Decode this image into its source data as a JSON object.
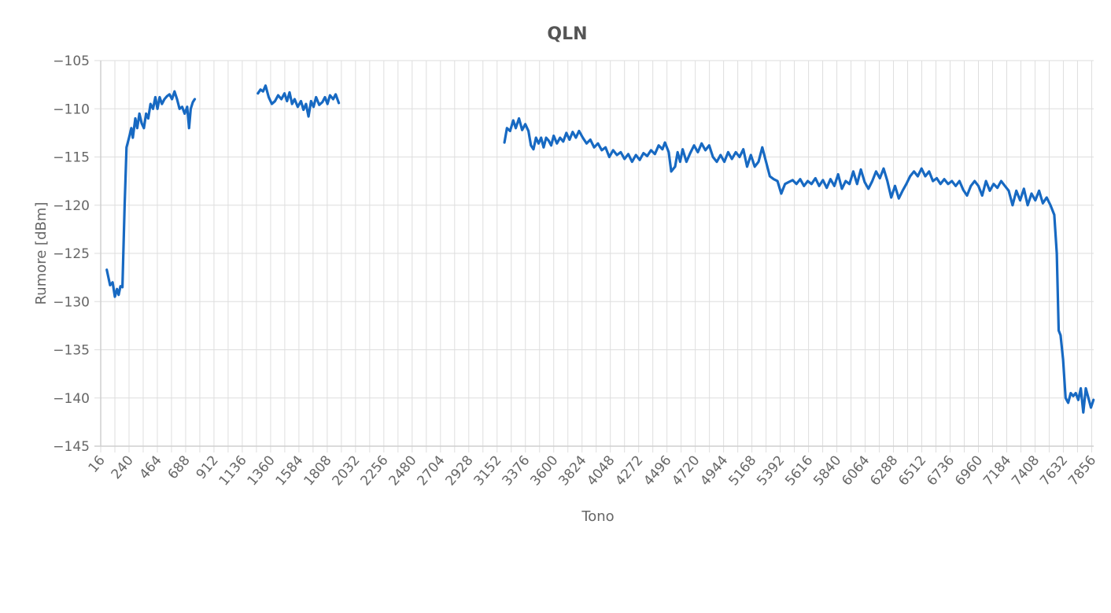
{
  "chart_data": {
    "type": "line",
    "title": "QLN",
    "xlabel": "Tono",
    "ylabel": "Rumore [dBm]",
    "xlim": [
      16,
      7872
    ],
    "ylim": [
      -145,
      -105
    ],
    "x_ticks": [
      16,
      240,
      464,
      688,
      912,
      1136,
      1360,
      1584,
      1808,
      2032,
      2256,
      2480,
      2704,
      2928,
      3152,
      3376,
      3600,
      3824,
      4048,
      4272,
      4496,
      4720,
      4944,
      5168,
      5392,
      5616,
      5840,
      6064,
      6288,
      6512,
      6736,
      6960,
      7184,
      7408,
      7632,
      7856
    ],
    "y_ticks": [
      -105,
      -110,
      -115,
      -120,
      -125,
      -130,
      -135,
      -140,
      -145
    ],
    "grid": true,
    "series_color": "#1769c2",
    "series": [
      {
        "segments": [
          [
            [
              64,
              -126.7
            ],
            [
              90,
              -128.3
            ],
            [
              110,
              -128.0
            ],
            [
              128,
              -129.5
            ],
            [
              145,
              -128.7
            ],
            [
              158,
              -129.3
            ],
            [
              172,
              -128.4
            ],
            [
              188,
              -128.5
            ],
            [
              205,
              -120.0
            ],
            [
              220,
              -114.0
            ],
            [
              240,
              -113.0
            ],
            [
              258,
              -112.0
            ],
            [
              270,
              -113.0
            ],
            [
              290,
              -111.0
            ],
            [
              305,
              -112.0
            ],
            [
              322,
              -110.5
            ],
            [
              340,
              -111.5
            ],
            [
              358,
              -112.0
            ],
            [
              375,
              -110.5
            ],
            [
              392,
              -111.0
            ],
            [
              410,
              -109.5
            ],
            [
              430,
              -110.0
            ],
            [
              448,
              -108.8
            ],
            [
              465,
              -110.0
            ],
            [
              482,
              -108.8
            ],
            [
              500,
              -109.5
            ],
            [
              520,
              -109.0
            ],
            [
              540,
              -108.7
            ],
            [
              560,
              -108.5
            ],
            [
              580,
              -109.0
            ],
            [
              600,
              -108.2
            ],
            [
              620,
              -109.0
            ],
            [
              640,
              -110.0
            ],
            [
              660,
              -109.8
            ],
            [
              680,
              -110.5
            ],
            [
              700,
              -109.8
            ],
            [
              715,
              -112.0
            ],
            [
              728,
              -110.0
            ],
            [
              745,
              -109.3
            ],
            [
              760,
              -109.0
            ]
          ],
          [
            [
              1260,
              -108.4
            ],
            [
              1280,
              -108.0
            ],
            [
              1300,
              -108.2
            ],
            [
              1320,
              -107.6
            ],
            [
              1345,
              -108.8
            ],
            [
              1370,
              -109.5
            ],
            [
              1395,
              -109.2
            ],
            [
              1420,
              -108.6
            ],
            [
              1445,
              -109.0
            ],
            [
              1470,
              -108.4
            ],
            [
              1490,
              -109.2
            ],
            [
              1510,
              -108.3
            ],
            [
              1530,
              -109.5
            ],
            [
              1550,
              -109.0
            ],
            [
              1575,
              -109.8
            ],
            [
              1600,
              -109.2
            ],
            [
              1620,
              -110.1
            ],
            [
              1640,
              -109.5
            ],
            [
              1660,
              -110.8
            ],
            [
              1680,
              -109.2
            ],
            [
              1700,
              -109.8
            ],
            [
              1720,
              -108.8
            ],
            [
              1745,
              -109.6
            ],
            [
              1770,
              -109.3
            ],
            [
              1790,
              -108.8
            ],
            [
              1810,
              -109.5
            ],
            [
              1830,
              -108.6
            ],
            [
              1855,
              -109.0
            ],
            [
              1875,
              -108.5
            ],
            [
              1900,
              -109.4
            ]
          ],
          [
            [
              3210,
              -113.5
            ],
            [
              3230,
              -112.0
            ],
            [
              3255,
              -112.3
            ],
            [
              3280,
              -111.2
            ],
            [
              3300,
              -112.0
            ],
            [
              3325,
              -111.0
            ],
            [
              3350,
              -112.2
            ],
            [
              3375,
              -111.6
            ],
            [
              3400,
              -112.3
            ],
            [
              3420,
              -113.8
            ],
            [
              3440,
              -114.2
            ],
            [
              3460,
              -113.0
            ],
            [
              3480,
              -113.6
            ],
            [
              3500,
              -113.0
            ],
            [
              3520,
              -114.0
            ],
            [
              3540,
              -113.0
            ],
            [
              3560,
              -113.3
            ],
            [
              3580,
              -113.8
            ],
            [
              3600,
              -112.8
            ],
            [
              3625,
              -113.6
            ],
            [
              3650,
              -113.0
            ],
            [
              3675,
              -113.4
            ],
            [
              3700,
              -112.5
            ],
            [
              3725,
              -113.2
            ],
            [
              3750,
              -112.4
            ],
            [
              3775,
              -113.0
            ],
            [
              3800,
              -112.3
            ],
            [
              3830,
              -113.0
            ],
            [
              3860,
              -113.6
            ],
            [
              3890,
              -113.2
            ],
            [
              3920,
              -114.0
            ],
            [
              3950,
              -113.6
            ],
            [
              3980,
              -114.3
            ],
            [
              4010,
              -114.0
            ],
            [
              4040,
              -115.0
            ],
            [
              4070,
              -114.3
            ],
            [
              4100,
              -114.8
            ],
            [
              4130,
              -114.5
            ],
            [
              4160,
              -115.2
            ],
            [
              4190,
              -114.7
            ],
            [
              4220,
              -115.5
            ],
            [
              4250,
              -114.8
            ],
            [
              4280,
              -115.3
            ],
            [
              4310,
              -114.6
            ],
            [
              4340,
              -114.9
            ],
            [
              4370,
              -114.3
            ],
            [
              4400,
              -114.7
            ],
            [
              4430,
              -113.8
            ],
            [
              4460,
              -114.2
            ],
            [
              4480,
              -113.5
            ],
            [
              4510,
              -114.5
            ],
            [
              4530,
              -116.5
            ],
            [
              4560,
              -116.0
            ],
            [
              4580,
              -114.5
            ],
            [
              4600,
              -115.5
            ],
            [
              4620,
              -114.2
            ],
            [
              4650,
              -115.5
            ],
            [
              4680,
              -114.6
            ],
            [
              4710,
              -113.8
            ],
            [
              4740,
              -114.5
            ],
            [
              4770,
              -113.6
            ],
            [
              4800,
              -114.3
            ],
            [
              4830,
              -113.8
            ],
            [
              4860,
              -115.0
            ],
            [
              4890,
              -115.5
            ],
            [
              4920,
              -114.8
            ],
            [
              4950,
              -115.5
            ],
            [
              4980,
              -114.5
            ],
            [
              5010,
              -115.2
            ],
            [
              5040,
              -114.5
            ],
            [
              5070,
              -115.0
            ],
            [
              5100,
              -114.2
            ],
            [
              5130,
              -116.0
            ],
            [
              5160,
              -114.8
            ],
            [
              5190,
              -116.0
            ],
            [
              5220,
              -115.5
            ],
            [
              5250,
              -114.0
            ],
            [
              5280,
              -115.5
            ],
            [
              5310,
              -117.0
            ],
            [
              5340,
              -117.3
            ],
            [
              5370,
              -117.5
            ],
            [
              5400,
              -118.8
            ],
            [
              5430,
              -117.8
            ],
            [
              5460,
              -117.6
            ],
            [
              5490,
              -117.4
            ],
            [
              5520,
              -117.8
            ],
            [
              5550,
              -117.3
            ],
            [
              5580,
              -118.0
            ],
            [
              5610,
              -117.5
            ],
            [
              5640,
              -117.8
            ],
            [
              5670,
              -117.2
            ],
            [
              5700,
              -118.0
            ],
            [
              5730,
              -117.4
            ],
            [
              5760,
              -118.2
            ],
            [
              5790,
              -117.3
            ],
            [
              5820,
              -118.0
            ],
            [
              5850,
              -116.8
            ],
            [
              5880,
              -118.3
            ],
            [
              5910,
              -117.5
            ],
            [
              5940,
              -117.8
            ],
            [
              5970,
              -116.5
            ],
            [
              6000,
              -117.8
            ],
            [
              6030,
              -116.3
            ],
            [
              6060,
              -117.6
            ],
            [
              6090,
              -118.3
            ],
            [
              6120,
              -117.5
            ],
            [
              6150,
              -116.5
            ],
            [
              6180,
              -117.2
            ],
            [
              6210,
              -116.2
            ],
            [
              6240,
              -117.5
            ],
            [
              6270,
              -119.2
            ],
            [
              6300,
              -118.0
            ],
            [
              6330,
              -119.3
            ],
            [
              6360,
              -118.5
            ],
            [
              6390,
              -117.8
            ],
            [
              6420,
              -117.0
            ],
            [
              6450,
              -116.5
            ],
            [
              6480,
              -117.0
            ],
            [
              6510,
              -116.2
            ],
            [
              6540,
              -117.0
            ],
            [
              6570,
              -116.5
            ],
            [
              6600,
              -117.5
            ],
            [
              6630,
              -117.2
            ],
            [
              6660,
              -117.8
            ],
            [
              6690,
              -117.3
            ],
            [
              6720,
              -117.8
            ],
            [
              6750,
              -117.5
            ],
            [
              6780,
              -118.0
            ],
            [
              6810,
              -117.5
            ],
            [
              6840,
              -118.4
            ],
            [
              6870,
              -119.0
            ],
            [
              6900,
              -118.0
            ],
            [
              6930,
              -117.5
            ],
            [
              6960,
              -118.0
            ],
            [
              6990,
              -119.0
            ],
            [
              7020,
              -117.5
            ],
            [
              7050,
              -118.5
            ],
            [
              7080,
              -117.8
            ],
            [
              7110,
              -118.2
            ],
            [
              7140,
              -117.5
            ],
            [
              7170,
              -118.0
            ],
            [
              7200,
              -118.5
            ],
            [
              7230,
              -120.0
            ],
            [
              7260,
              -118.5
            ],
            [
              7290,
              -119.5
            ],
            [
              7320,
              -118.3
            ],
            [
              7350,
              -120.0
            ],
            [
              7380,
              -118.8
            ],
            [
              7410,
              -119.5
            ],
            [
              7440,
              -118.5
            ],
            [
              7470,
              -119.8
            ],
            [
              7500,
              -119.2
            ],
            [
              7530,
              -120.0
            ],
            [
              7560,
              -121.0
            ],
            [
              7580,
              -125.0
            ],
            [
              7595,
              -133.0
            ],
            [
              7610,
              -133.5
            ],
            [
              7630,
              -136.0
            ],
            [
              7650,
              -140.0
            ],
            [
              7670,
              -140.5
            ],
            [
              7690,
              -139.5
            ],
            [
              7710,
              -139.8
            ],
            [
              7730,
              -139.5
            ],
            [
              7750,
              -140.2
            ],
            [
              7770,
              -139.0
            ],
            [
              7790,
              -141.5
            ],
            [
              7810,
              -139.0
            ],
            [
              7830,
              -140.0
            ],
            [
              7850,
              -141.0
            ],
            [
              7870,
              -140.2
            ]
          ]
        ]
      }
    ]
  }
}
